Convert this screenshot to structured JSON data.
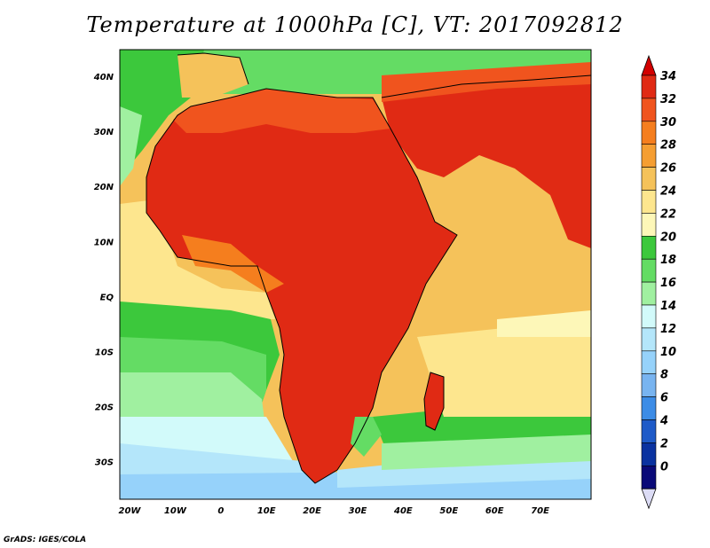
{
  "title": "Temperature at 1000hPa [C], VT: 2017092812",
  "credit": "GrADS: IGES/COLA",
  "lat_labels": [
    "40N",
    "30N",
    "20N",
    "10N",
    "EQ",
    "10S",
    "20S",
    "30S"
  ],
  "lon_labels": [
    "20W",
    "10W",
    "0",
    "10E",
    "20E",
    "30E",
    "40E",
    "50E",
    "60E",
    "70E"
  ],
  "colorbar": {
    "labels": [
      "34",
      "32",
      "30",
      "28",
      "26",
      "24",
      "22",
      "20",
      "18",
      "16",
      "14",
      "12",
      "10",
      "8",
      "6",
      "4",
      "2",
      "0"
    ],
    "colors": [
      "#e02a14",
      "#f0541e",
      "#f57e1e",
      "#f59e32",
      "#f5c25a",
      "#fde68e",
      "#fdf7b8",
      "#3cc83c",
      "#64dc64",
      "#a0f0a0",
      "#d2fafa",
      "#b4e6fa",
      "#96d2fa",
      "#78b4f0",
      "#3c8ce6",
      "#1e5ac8",
      "#0a32a0",
      "#0a0a78"
    ],
    "top_color": "#d20000",
    "bottom_color": "#dcdcf5"
  }
}
